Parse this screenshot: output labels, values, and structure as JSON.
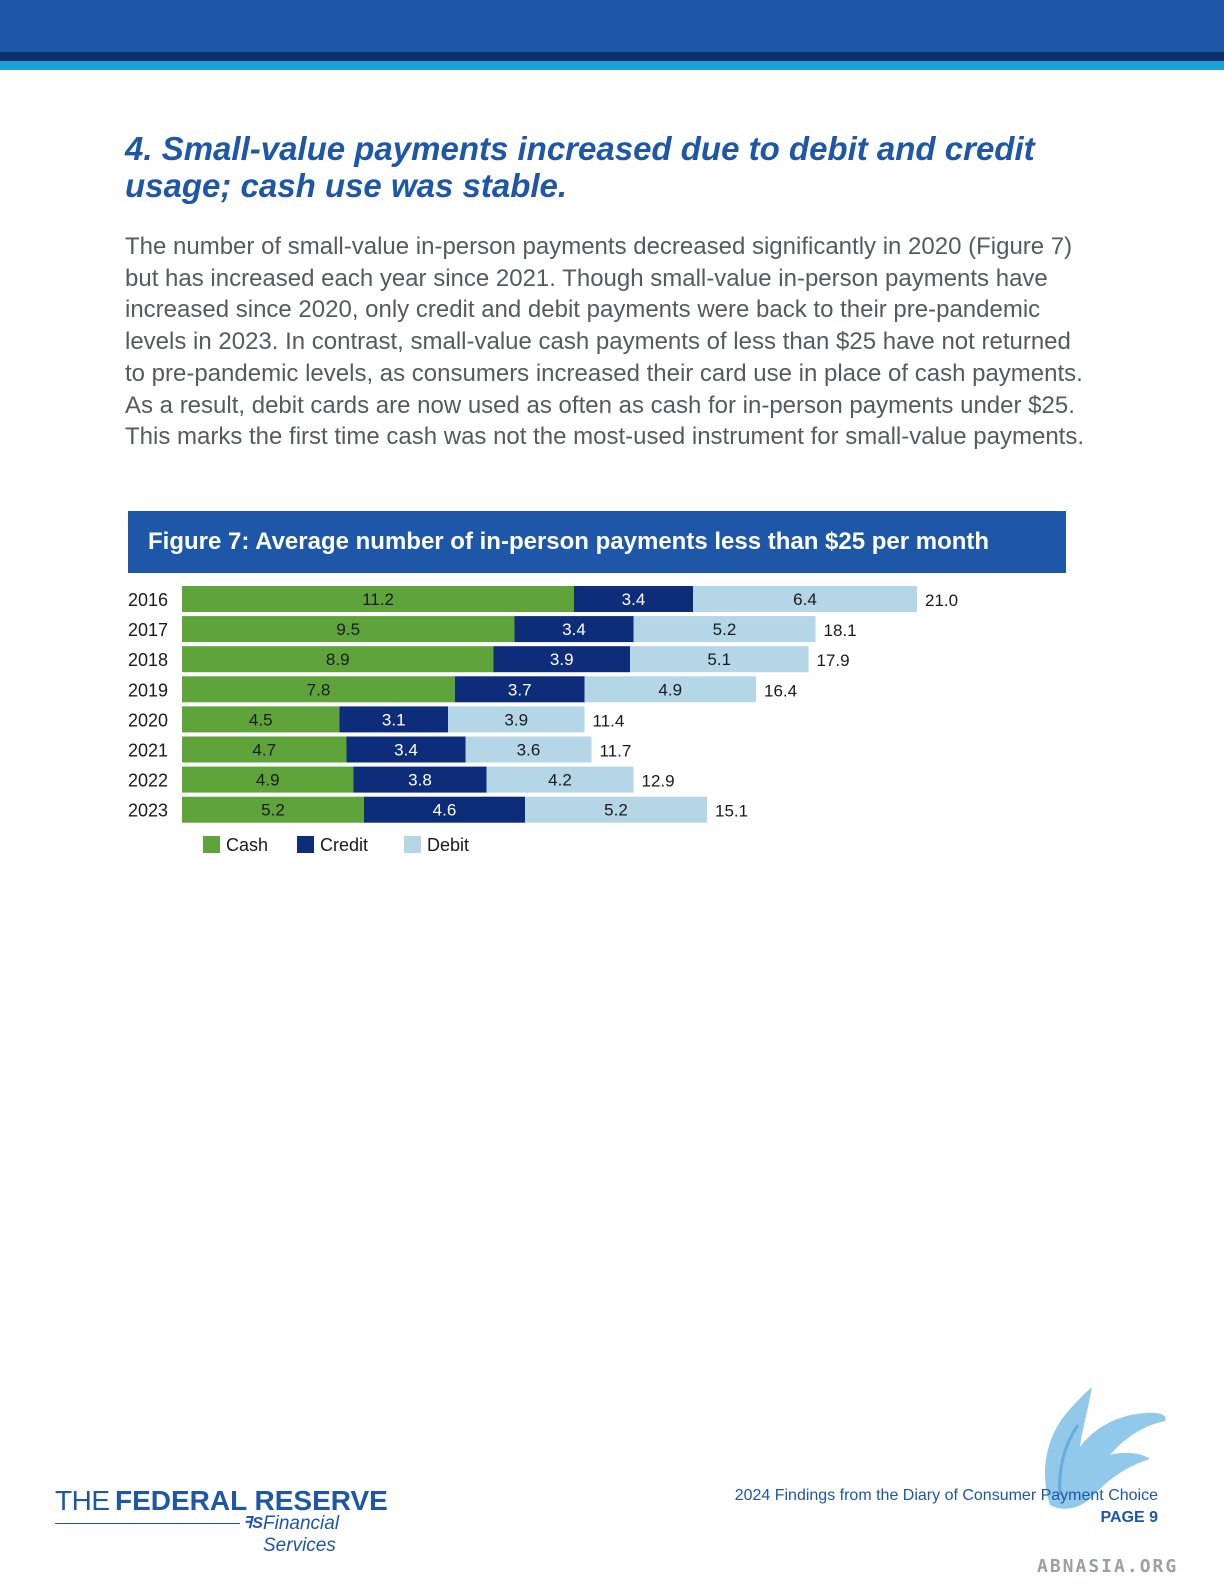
{
  "heading": "4. Small-value payments increased due to debit and credit usage; cash use was stable.",
  "body": "The number of small-value in-person payments decreased significantly in 2020 (Figure 7) but has increased each year since 2021. Though small-value in-person payments have increased since 2020, only credit and debit payments were back to their pre-pandemic levels in 2023. In contrast, small-value cash payments of less than $25 have not returned to pre-pandemic levels, as consumers increased their card use in place of cash payments. As a result, debit cards are now used as often as cash for in-person payments under $25. This marks the first time cash was not the most-used instrument for small-value payments.",
  "figure_title": "Figure 7: Average number of in-person payments less than $25 per month",
  "chart_data": {
    "type": "bar",
    "orientation": "horizontal",
    "stacked": true,
    "categories": [
      "2016",
      "2017",
      "2018",
      "2019",
      "2020",
      "2021",
      "2022",
      "2023"
    ],
    "series": [
      {
        "name": "Cash",
        "values": [
          11.2,
          9.5,
          8.9,
          7.8,
          4.5,
          4.7,
          4.9,
          5.2
        ]
      },
      {
        "name": "Credit",
        "values": [
          3.4,
          3.4,
          3.9,
          3.7,
          3.1,
          3.4,
          3.8,
          4.6
        ]
      },
      {
        "name": "Debit",
        "values": [
          6.4,
          5.2,
          5.1,
          4.9,
          3.9,
          3.6,
          4.2,
          5.2
        ]
      }
    ],
    "series_labels": [
      [
        "11.2",
        "9.5",
        "8.9",
        "7.8",
        "4.5",
        "4.7",
        "4.9",
        "5.2"
      ],
      [
        "3.4",
        "3.4",
        "3.9",
        "3.7",
        "3.1",
        "3.4",
        "3.8",
        "4.6"
      ],
      [
        "6.4",
        "5.2",
        "5.1",
        "4.9",
        "3.9",
        "3.6",
        "4.2",
        "5.2"
      ]
    ],
    "totals": [
      "21.0",
      "18.1",
      "17.9",
      "16.4",
      "11.4",
      "11.7",
      "12.9",
      "15.1"
    ],
    "colors": {
      "Cash": "#5fa43a",
      "Credit": "#0d2c7a",
      "Debit": "#b4d6e6"
    },
    "label_colors": {
      "Cash": "#1a1a1a",
      "Credit": "#ffffff",
      "Debit": "#1a1a1a"
    },
    "legend": [
      "Cash",
      "Credit",
      "Debit"
    ],
    "legend_position": "bottom-left",
    "grid": false,
    "xaxis_visible": false,
    "title": "",
    "xlabel": "",
    "ylabel": ""
  },
  "footer": {
    "logo_the": "THE",
    "logo_name": "FEDERAL RESERVE",
    "logo_sub": "Financial Services",
    "report": "2024 Findings from the Diary of Consumer Payment Choice",
    "page": "PAGE 9"
  },
  "watermark": "ABNASIA.ORG"
}
